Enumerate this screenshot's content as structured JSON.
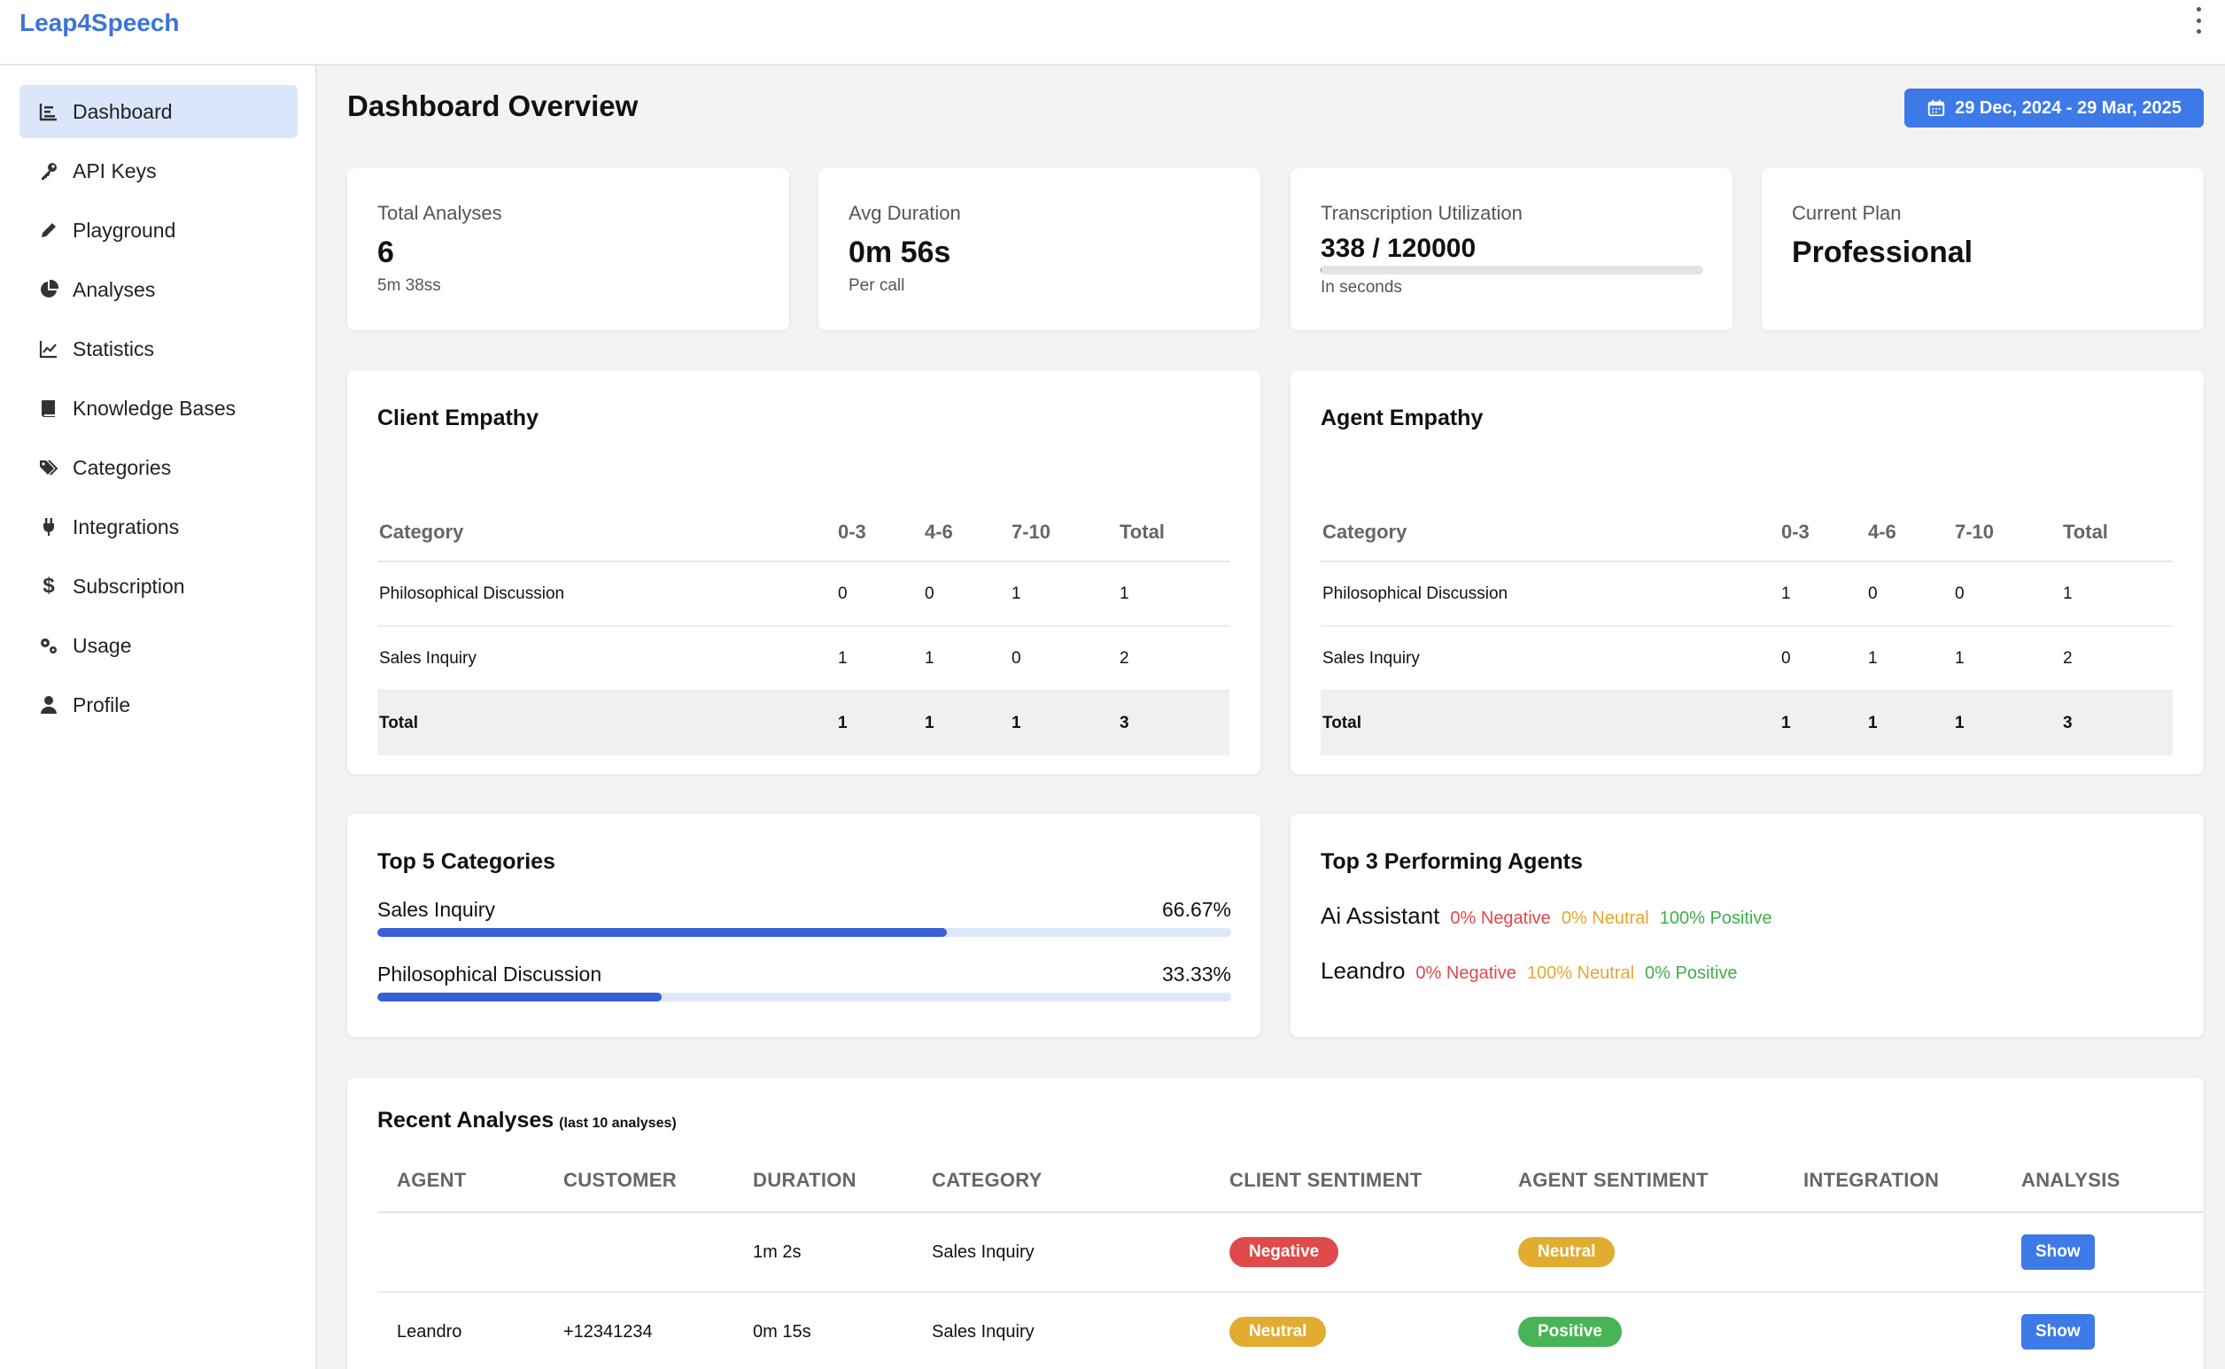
{
  "app": {
    "brand": "Leap4Speech"
  },
  "sidebar": {
    "items": [
      {
        "label": "Dashboard",
        "icon": "bar-chart-icon",
        "active": true
      },
      {
        "label": "API Keys",
        "icon": "key-icon"
      },
      {
        "label": "Playground",
        "icon": "pencil-icon"
      },
      {
        "label": "Analyses",
        "icon": "pie-chart-icon"
      },
      {
        "label": "Statistics",
        "icon": "line-chart-icon"
      },
      {
        "label": "Knowledge Bases",
        "icon": "book-icon"
      },
      {
        "label": "Categories",
        "icon": "tags-icon"
      },
      {
        "label": "Integrations",
        "icon": "plug-icon"
      },
      {
        "label": "Subscription",
        "icon": "dollar-icon"
      },
      {
        "label": "Usage",
        "icon": "gears-icon"
      },
      {
        "label": "Profile",
        "icon": "user-icon"
      }
    ]
  },
  "header": {
    "title": "Dashboard Overview",
    "date_range": "29 Dec, 2024 - 29 Mar, 2025"
  },
  "stats": {
    "total_analyses": {
      "label": "Total Analyses",
      "value": "6",
      "sub": "5m 38ss"
    },
    "avg_duration": {
      "label": "Avg Duration",
      "value": "0m 56s",
      "sub": "Per call"
    },
    "transcription": {
      "label": "Transcription Utilization",
      "value": "338 / 120000",
      "sub": "In seconds",
      "fraction": 0.0028
    },
    "plan": {
      "label": "Current Plan",
      "value": "Professional"
    }
  },
  "client_empathy": {
    "title": "Client Empathy",
    "headers": [
      "Category",
      "0-3",
      "4-6",
      "7-10",
      "Total"
    ],
    "rows": [
      [
        "Philosophical Discussion",
        "0",
        "0",
        "1",
        "1"
      ],
      [
        "Sales Inquiry",
        "1",
        "1",
        "0",
        "2"
      ]
    ],
    "total": [
      "Total",
      "1",
      "1",
      "1",
      "3"
    ]
  },
  "agent_empathy": {
    "title": "Agent Empathy",
    "headers": [
      "Category",
      "0-3",
      "4-6",
      "7-10",
      "Total"
    ],
    "rows": [
      [
        "Philosophical Discussion",
        "1",
        "0",
        "0",
        "1"
      ],
      [
        "Sales Inquiry",
        "0",
        "1",
        "1",
        "2"
      ]
    ],
    "total": [
      "Total",
      "1",
      "1",
      "1",
      "3"
    ]
  },
  "top_categories": {
    "title": "Top 5 Categories",
    "items": [
      {
        "label": "Sales Inquiry",
        "pct": "66.67%",
        "value": 66.67
      },
      {
        "label": "Philosophical Discussion",
        "pct": "33.33%",
        "value": 33.33
      }
    ]
  },
  "top_agents": {
    "title": "Top 3 Performing Agents",
    "items": [
      {
        "name": "Ai Assistant",
        "negative": "0% Negative",
        "neutral": "0% Neutral",
        "positive": "100% Positive"
      },
      {
        "name": "Leandro",
        "negative": "0% Negative",
        "neutral": "100% Neutral",
        "positive": "0% Positive"
      }
    ]
  },
  "recent": {
    "title": "Recent Analyses",
    "subtitle": "(last 10 analyses)",
    "headers": [
      "AGENT",
      "CUSTOMER",
      "DURATION",
      "CATEGORY",
      "CLIENT SENTIMENT",
      "AGENT SENTIMENT",
      "INTEGRATION",
      "ANALYSIS"
    ],
    "rows": [
      {
        "agent": "",
        "customer": "",
        "duration": "1m 2s",
        "category": "Sales Inquiry",
        "client_sentiment": "Negative",
        "agent_sentiment": "Neutral",
        "integration": "",
        "action": "Show"
      },
      {
        "agent": "Leandro",
        "customer": "+12341234",
        "duration": "0m 15s",
        "category": "Sales Inquiry",
        "client_sentiment": "Neutral",
        "agent_sentiment": "Positive",
        "integration": "",
        "action": "Show"
      }
    ]
  },
  "colors": {
    "brand": "#3b74d9",
    "accent": "#3d7ae8",
    "negative": "#df4a4a",
    "neutral": "#e2ac31",
    "positive": "#47b556"
  }
}
